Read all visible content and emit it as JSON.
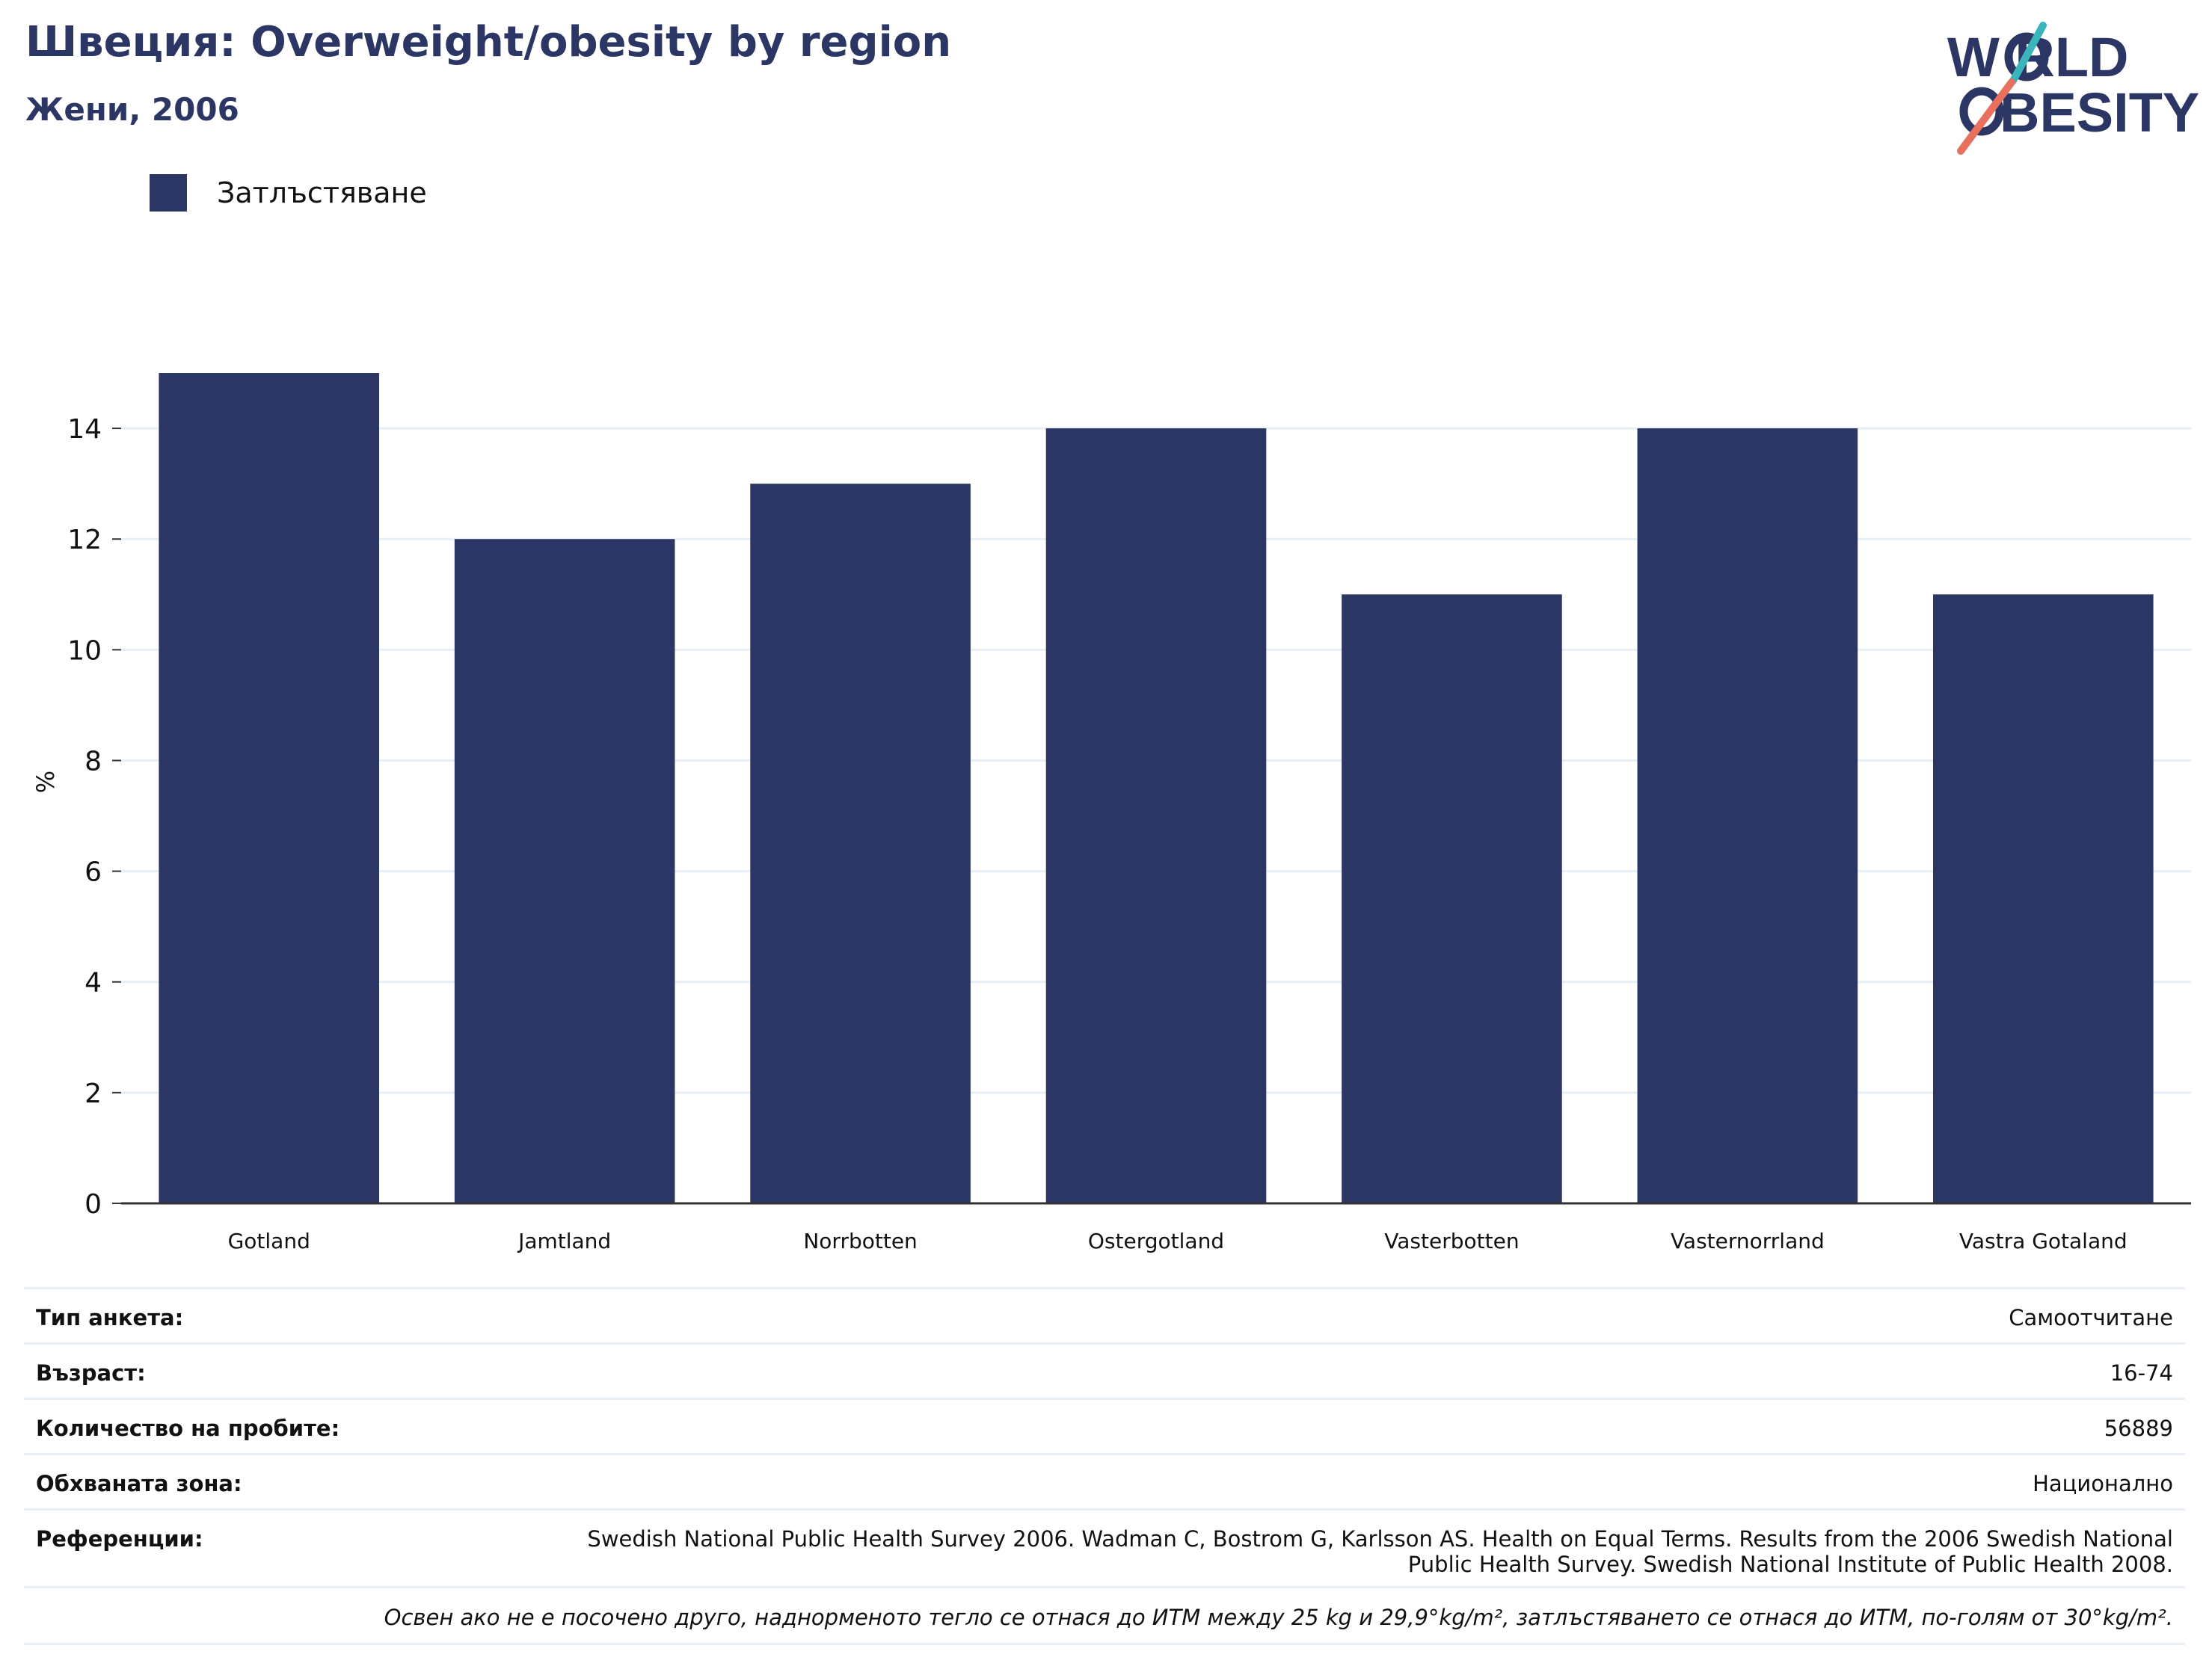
{
  "header": {
    "title": "Швеция: Overweight/obesity by region",
    "subtitle": "Жени, 2006"
  },
  "logo": {
    "line1": "W RLD",
    "line2": "BESITY",
    "colors": {
      "navy": "#2b3664",
      "teal": "#3bb5bc",
      "coral": "#e8705c"
    }
  },
  "legend": {
    "label": "Затлъстяване"
  },
  "colors": {
    "bar": "#2b3664",
    "grid": "#e8eff6",
    "axis": "#333333"
  },
  "chart_data": {
    "type": "bar",
    "categories": [
      "Gotland",
      "Jamtland",
      "Norrbotten",
      "Ostergotland",
      "Vasterbotten",
      "Vasternorrland",
      "Vastra Gotaland"
    ],
    "series": [
      {
        "name": "Затлъстяване",
        "values": [
          15,
          12,
          13,
          14,
          11,
          14,
          11
        ]
      }
    ],
    "ylabel": "%",
    "ylim": [
      0,
      15.5
    ],
    "yticks": [
      0,
      2,
      4,
      6,
      8,
      10,
      12,
      14
    ],
    "grid": true,
    "legend_position": "top-left"
  },
  "info": {
    "rows": [
      {
        "key": "Тип анкета:",
        "value": "Самоотчитане"
      },
      {
        "key": "Възраст:",
        "value": "16-74"
      },
      {
        "key": "Количество на пробите:",
        "value": "56889"
      },
      {
        "key": "Обхваната зона:",
        "value": "Национално"
      }
    ],
    "reference": {
      "key": "Референции:",
      "value": "Swedish National Public Health Survey 2006. Wadman C, Bostrom G, Karlsson AS. Health on Equal Terms. Results from the 2006 Swedish National Public Health Survey. Swedish National Institute of Public Health 2008."
    },
    "note": "Освен ако не е посочено друго, наднорменото тегло се отнася до ИТМ между 25 kg и 29,9°kg/m², затлъстяването се отнася до ИТМ, по-голям от 30°kg/m²."
  }
}
